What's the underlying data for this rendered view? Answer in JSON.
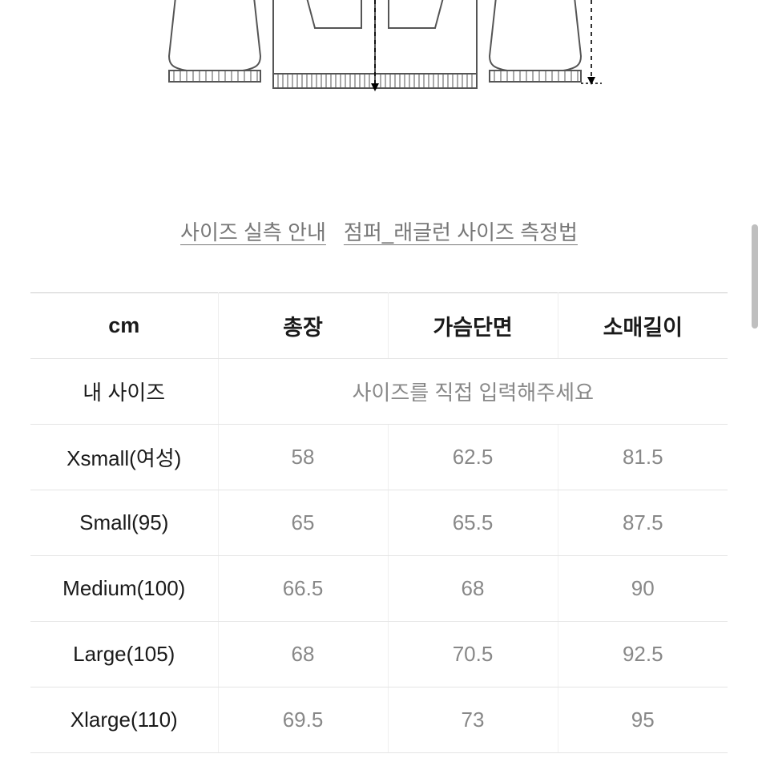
{
  "diagram": {
    "stroke_color": "#555555",
    "stroke_width": 2,
    "arrow_dash": "4 4"
  },
  "links": {
    "guide1": "사이즈 실측 안내",
    "guide2": "점퍼_래글런 사이즈 측정법"
  },
  "table": {
    "columns": [
      "cm",
      "총장",
      "가슴단면",
      "소매길이"
    ],
    "my_size_label": "내 사이즈",
    "my_size_placeholder": "사이즈를 직접 입력해주세요",
    "rows": [
      {
        "label": "Xsmall(여성)",
        "values": [
          "58",
          "62.5",
          "81.5"
        ]
      },
      {
        "label": "Small(95)",
        "values": [
          "65",
          "65.5",
          "87.5"
        ]
      },
      {
        "label": "Medium(100)",
        "values": [
          "66.5",
          "68",
          "90"
        ]
      },
      {
        "label": "Large(105)",
        "values": [
          "68",
          "70.5",
          "92.5"
        ]
      },
      {
        "label": "Xlarge(110)",
        "values": [
          "69.5",
          "73",
          "95"
        ]
      }
    ]
  },
  "colors": {
    "text_primary": "#1a1a1a",
    "text_secondary": "#888888",
    "link_text": "#777777",
    "border": "#e5e5e5",
    "background": "#ffffff",
    "scrollbar": "#bfbfbf"
  }
}
